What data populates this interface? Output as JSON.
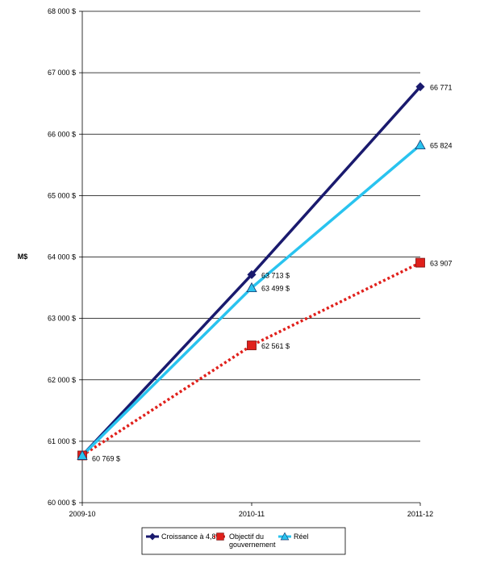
{
  "chart_data": {
    "type": "line",
    "title": "",
    "xlabel": "",
    "ylabel": "M$",
    "categories": [
      "2009-10",
      "2010-11",
      "2011-12"
    ],
    "ylim": [
      60000,
      68000
    ],
    "yticks": [
      60000,
      61000,
      62000,
      63000,
      64000,
      65000,
      66000,
      67000,
      68000
    ],
    "ytick_labels": [
      "60 000 $",
      "61 000 $",
      "62 000 $",
      "63 000 $",
      "64 000 $",
      "65 000 $",
      "66 000 $",
      "67 000 $",
      "68 000 $"
    ],
    "grid": true,
    "legend_position": "bottom",
    "series": [
      {
        "name": "Croissance à 4,8%",
        "values": [
          60769,
          63713,
          66771
        ],
        "labels": [
          "",
          "63 713 $",
          "66 771"
        ],
        "color": "#1a1a6e",
        "marker": "diamond",
        "line_style": "solid"
      },
      {
        "name": "Objectif du gouvernement",
        "values": [
          60769,
          62561,
          63907
        ],
        "labels": [
          "60 769 $",
          "62 561 $",
          "63 907"
        ],
        "color": "#e0201b",
        "marker": "square",
        "line_style": "dotted"
      },
      {
        "name": "Réel",
        "values": [
          60769,
          63499,
          65824
        ],
        "labels": [
          "",
          "63 499 $",
          "65 824"
        ],
        "color": "#29c3ef",
        "marker": "triangle",
        "line_style": "solid"
      }
    ]
  }
}
